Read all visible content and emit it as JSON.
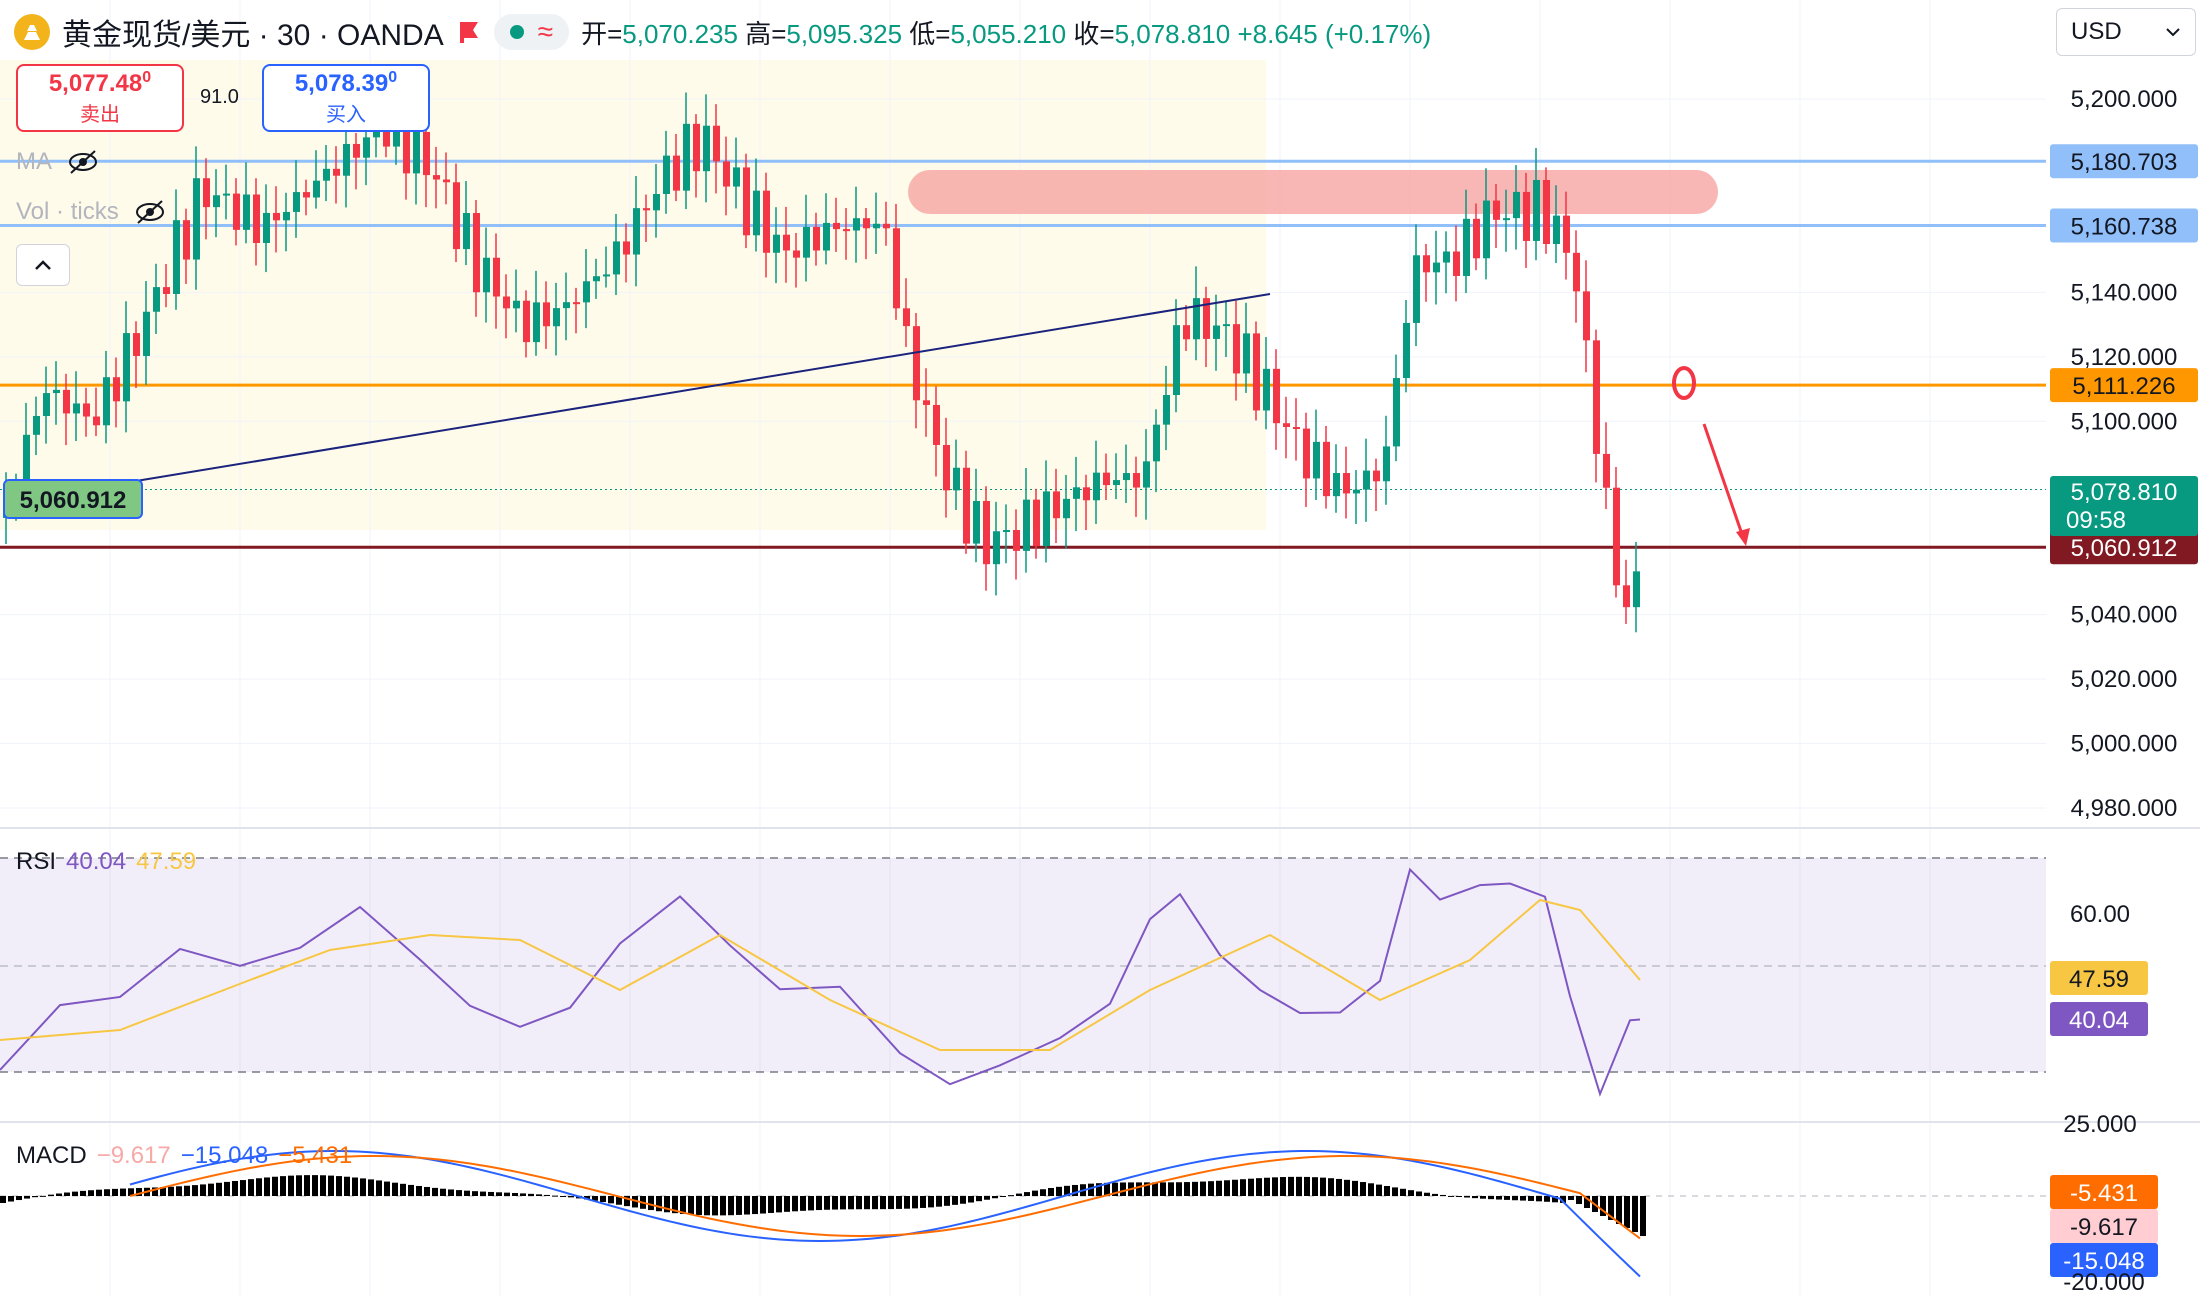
{
  "header": {
    "symbol_title": "黄金现货/美元 · 30 · OANDA",
    "open_key": "开=",
    "open": "5,070.235",
    "high_key": "高=",
    "high": "5,095.325",
    "low_key": "低=",
    "low": "5,055.210",
    "close_key": "收=",
    "close": "5,078.810",
    "change": "+8.645 (+0.17%)"
  },
  "trade": {
    "sell_price": "5,077.48",
    "sell_price_sup": "0",
    "sell_label": "卖出",
    "spread": "91.0",
    "buy_price": "5,078.39",
    "buy_price_sup": "0",
    "buy_label": "买入"
  },
  "indicators": {
    "ma_label": "MA",
    "vol_label": "Vol · ticks"
  },
  "currency": "USD",
  "price_axis": {
    "ticks": [
      "5,200.000",
      "5,140.000",
      "5,120.000",
      "5,100.000",
      "5,040.000",
      "5,020.000",
      "5,000.000",
      "4,980.000"
    ],
    "tick_values": [
      5200,
      5140,
      5120,
      5100,
      5040,
      5020,
      5000,
      4980
    ],
    "tags": [
      {
        "label": "5,180.703",
        "value": 5180.703,
        "bg": "#90bff9",
        "fg": "#131722"
      },
      {
        "label": "5,160.738",
        "value": 5160.738,
        "bg": "#90bff9",
        "fg": "#131722"
      },
      {
        "label": "5,111.226",
        "value": 5111.226,
        "bg": "#ff9800",
        "fg": "#131722"
      },
      {
        "label": "5,060.912",
        "value": 5060.912,
        "bg": "#801922",
        "fg": "#ffffff"
      }
    ],
    "current_price": "5,078.810",
    "countdown": "09:58",
    "left_label": "5,060.912"
  },
  "rsi": {
    "label": "RSI",
    "value": "40.04",
    "ma_value": "47.59",
    "axis_ticks": [
      "60.00"
    ],
    "partial_tick": "25.000"
  },
  "macd": {
    "label": "MACD",
    "hist": "−9.617",
    "macd": "−15.048",
    "signal": "−5.431",
    "tag_signal": "-5.431",
    "tag_hist": "-9.617",
    "tag_macd": "-15.048",
    "partial_tick": "-20.000"
  },
  "colors": {
    "up": "#089981",
    "down": "#f23645",
    "blue_line": "#90bff9",
    "orange_line": "#ff9800",
    "dark_red_line": "#801922",
    "rsi_line": "#7e57c2",
    "rsi_ma": "#f7c744",
    "macd_line": "#2962ff",
    "signal_line": "#ff6d00"
  }
}
